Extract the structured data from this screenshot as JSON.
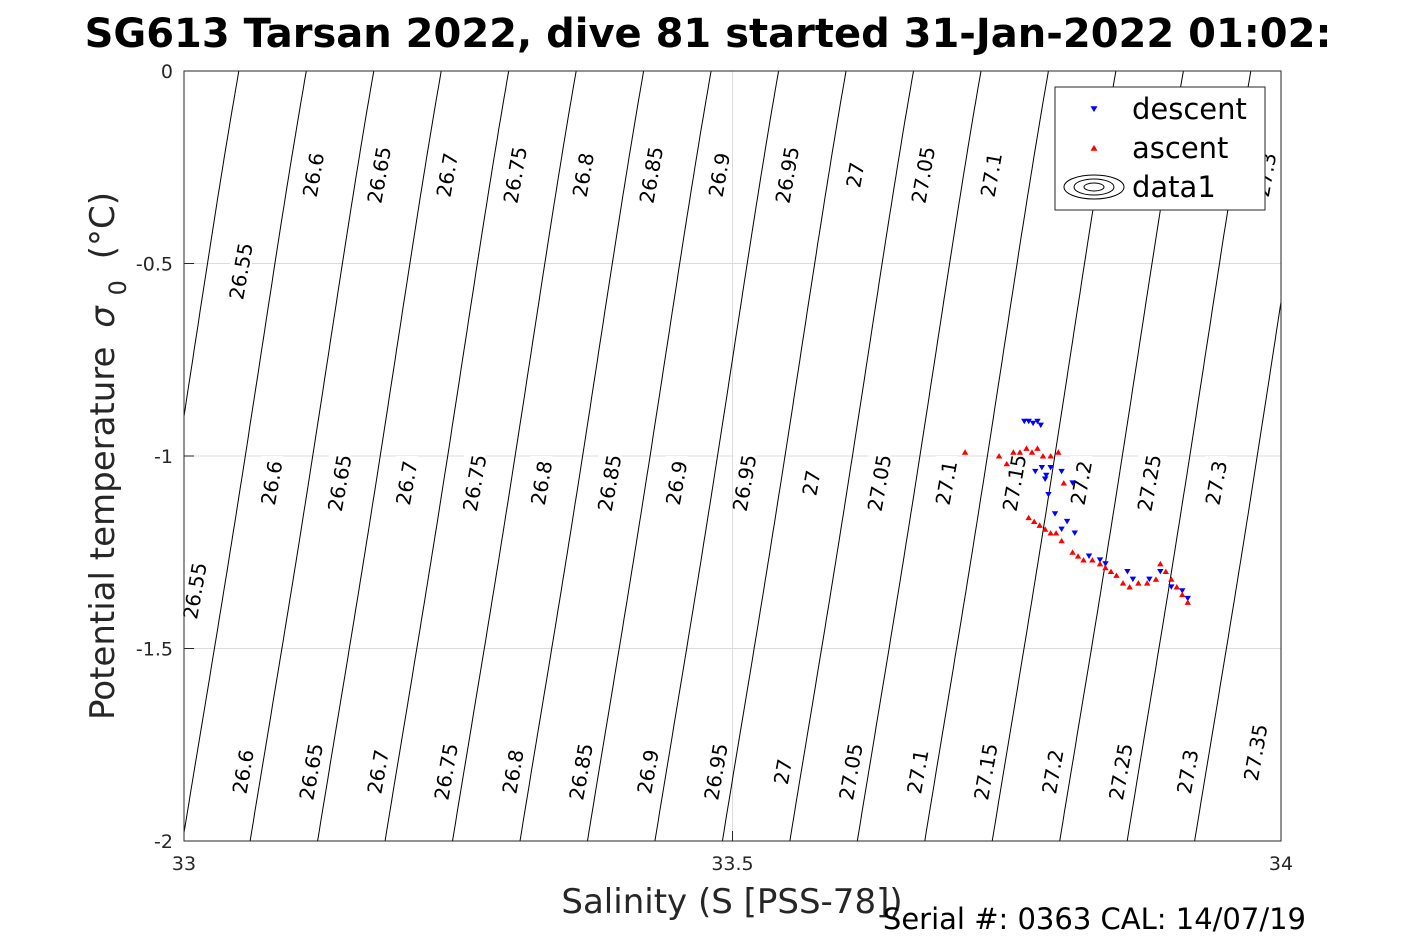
{
  "chart_data": {
    "type": "scatter",
    "title": "SG613 Tarsan 2022, dive 81 started 31-Jan-2022 01:02:",
    "xlabel": "Salinity (S [PSS-78])",
    "ylabel_main": "Potential temperature",
    "ylabel_sigma": "σ",
    "ylabel_sub": "0",
    "ylabel_unit": "(°C)",
    "footer": "Serial #: 0363  CAL: 14/07/19",
    "xlim": [
      33,
      34
    ],
    "ylim": [
      -2,
      0
    ],
    "x_ticks": [
      {
        "value": 33,
        "label": "33"
      },
      {
        "value": 33.5,
        "label": "33.5"
      },
      {
        "value": 34,
        "label": "34"
      }
    ],
    "y_ticks": [
      {
        "value": 0,
        "label": "0"
      },
      {
        "value": -0.5,
        "label": "-0.5"
      },
      {
        "value": -1,
        "label": "-1"
      },
      {
        "value": -1.5,
        "label": "-1.5"
      },
      {
        "value": -2,
        "label": "-2"
      }
    ],
    "grid": true,
    "legend_position": "top-right",
    "legend": [
      {
        "name": "descent",
        "marker": "triangle-down",
        "color": "#0000ff"
      },
      {
        "name": "ascent",
        "marker": "triangle-up",
        "color": "#ff0000"
      },
      {
        "name": "data1",
        "marker": "contour",
        "color": "#000000"
      }
    ],
    "contours": {
      "levels": [
        26.55,
        26.6,
        26.65,
        26.7,
        26.75,
        26.8,
        26.85,
        26.9,
        26.95,
        27,
        27.05,
        27.1,
        27.15,
        27.2,
        27.25,
        27.3,
        27.35
      ],
      "labels": [
        {
          "text": "26.55",
          "s": 33.052,
          "t": -0.52
        },
        {
          "text": "26.6",
          "s": 33.118,
          "t": -0.27
        },
        {
          "text": "26.65",
          "s": 33.178,
          "t": -0.27
        },
        {
          "text": "26.7",
          "s": 33.24,
          "t": -0.27
        },
        {
          "text": "26.75",
          "s": 33.302,
          "t": -0.27
        },
        {
          "text": "26.8",
          "s": 33.364,
          "t": -0.27
        },
        {
          "text": "26.85",
          "s": 33.426,
          "t": -0.27
        },
        {
          "text": "26.9",
          "s": 33.488,
          "t": -0.27
        },
        {
          "text": "26.95",
          "s": 33.55,
          "t": -0.27
        },
        {
          "text": "27",
          "s": 33.612,
          "t": -0.27
        },
        {
          "text": "27.05",
          "s": 33.674,
          "t": -0.27
        },
        {
          "text": "27.1",
          "s": 33.736,
          "t": -0.27
        },
        {
          "text": "27.3",
          "s": 33.986,
          "t": -0.27
        },
        {
          "text": "26.55",
          "s": 33.01,
          "t": -1.35
        },
        {
          "text": "26.6",
          "s": 33.08,
          "t": -1.07
        },
        {
          "text": "26.65",
          "s": 33.142,
          "t": -1.07
        },
        {
          "text": "26.7",
          "s": 33.203,
          "t": -1.07
        },
        {
          "text": "26.75",
          "s": 33.265,
          "t": -1.07
        },
        {
          "text": "26.8",
          "s": 33.326,
          "t": -1.07
        },
        {
          "text": "26.85",
          "s": 33.388,
          "t": -1.07
        },
        {
          "text": "26.9",
          "s": 33.449,
          "t": -1.07
        },
        {
          "text": "26.95",
          "s": 33.511,
          "t": -1.07
        },
        {
          "text": "27",
          "s": 33.572,
          "t": -1.07
        },
        {
          "text": "27.05",
          "s": 33.634,
          "t": -1.07
        },
        {
          "text": "27.1",
          "s": 33.695,
          "t": -1.07
        },
        {
          "text": "27.15",
          "s": 33.757,
          "t": -1.07
        },
        {
          "text": "27.2",
          "s": 33.818,
          "t": -1.07
        },
        {
          "text": "27.25",
          "s": 33.88,
          "t": -1.07
        },
        {
          "text": "27.3",
          "s": 33.941,
          "t": -1.07
        },
        {
          "text": "26.6",
          "s": 33.054,
          "t": -1.82
        },
        {
          "text": "26.65",
          "s": 33.116,
          "t": -1.82
        },
        {
          "text": "26.7",
          "s": 33.177,
          "t": -1.82
        },
        {
          "text": "26.75",
          "s": 33.239,
          "t": -1.82
        },
        {
          "text": "26.8",
          "s": 33.3,
          "t": -1.82
        },
        {
          "text": "26.85",
          "s": 33.362,
          "t": -1.82
        },
        {
          "text": "26.9",
          "s": 33.423,
          "t": -1.82
        },
        {
          "text": "26.95",
          "s": 33.485,
          "t": -1.82
        },
        {
          "text": "27",
          "s": 33.546,
          "t": -1.82
        },
        {
          "text": "27.05",
          "s": 33.608,
          "t": -1.82
        },
        {
          "text": "27.1",
          "s": 33.669,
          "t": -1.82
        },
        {
          "text": "27.15",
          "s": 33.731,
          "t": -1.82
        },
        {
          "text": "27.2",
          "s": 33.792,
          "t": -1.82
        },
        {
          "text": "27.25",
          "s": 33.854,
          "t": -1.82
        },
        {
          "text": "27.3",
          "s": 33.915,
          "t": -1.82
        },
        {
          "text": "27.35",
          "s": 33.977,
          "t": -1.77
        }
      ]
    },
    "series": [
      {
        "name": "descent",
        "marker": "triangle-down",
        "color": "#0000ff",
        "points": [
          [
            33.766,
            -0.91
          ],
          [
            33.77,
            -0.91
          ],
          [
            33.774,
            -0.915
          ],
          [
            33.778,
            -0.91
          ],
          [
            33.781,
            -0.92
          ],
          [
            33.776,
            -1.04
          ],
          [
            33.782,
            -1.03
          ],
          [
            33.786,
            -1.05
          ],
          [
            33.79,
            -1.03
          ],
          [
            33.785,
            -1.06
          ],
          [
            33.788,
            -1.1
          ],
          [
            33.8,
            -1.04
          ],
          [
            33.81,
            -1.07
          ],
          [
            33.794,
            -1.15
          ],
          [
            33.805,
            -1.17
          ],
          [
            33.8,
            -1.19
          ],
          [
            33.812,
            -1.2
          ],
          [
            33.825,
            -1.26
          ],
          [
            33.835,
            -1.27
          ],
          [
            33.84,
            -1.28
          ],
          [
            33.86,
            -1.3
          ],
          [
            33.865,
            -1.32
          ],
          [
            33.88,
            -1.32
          ],
          [
            33.89,
            -1.3
          ],
          [
            33.9,
            -1.34
          ],
          [
            33.91,
            -1.35
          ],
          [
            33.915,
            -1.37
          ]
        ]
      },
      {
        "name": "ascent",
        "marker": "triangle-up",
        "color": "#ff0000",
        "points": [
          [
            33.712,
            -0.99
          ],
          [
            33.743,
            -1.0
          ],
          [
            33.75,
            -1.02
          ],
          [
            33.756,
            -0.99
          ],
          [
            33.762,
            -0.99
          ],
          [
            33.768,
            -0.98
          ],
          [
            33.773,
            -0.99
          ],
          [
            33.778,
            -0.98
          ],
          [
            33.783,
            -1.0
          ],
          [
            33.79,
            -1.0
          ],
          [
            33.797,
            -0.99
          ],
          [
            33.802,
            -1.07
          ],
          [
            33.77,
            -1.16
          ],
          [
            33.775,
            -1.17
          ],
          [
            33.78,
            -1.18
          ],
          [
            33.785,
            -1.19
          ],
          [
            33.79,
            -1.2
          ],
          [
            33.795,
            -1.2
          ],
          [
            33.8,
            -1.22
          ],
          [
            33.81,
            -1.25
          ],
          [
            33.815,
            -1.26
          ],
          [
            33.82,
            -1.27
          ],
          [
            33.828,
            -1.27
          ],
          [
            33.835,
            -1.28
          ],
          [
            33.84,
            -1.29
          ],
          [
            33.845,
            -1.3
          ],
          [
            33.85,
            -1.31
          ],
          [
            33.856,
            -1.33
          ],
          [
            33.862,
            -1.34
          ],
          [
            33.87,
            -1.33
          ],
          [
            33.878,
            -1.33
          ],
          [
            33.886,
            -1.32
          ],
          [
            33.89,
            -1.28
          ],
          [
            33.895,
            -1.3
          ],
          [
            33.9,
            -1.32
          ],
          [
            33.905,
            -1.34
          ],
          [
            33.91,
            -1.36
          ],
          [
            33.915,
            -1.38
          ]
        ]
      }
    ]
  }
}
